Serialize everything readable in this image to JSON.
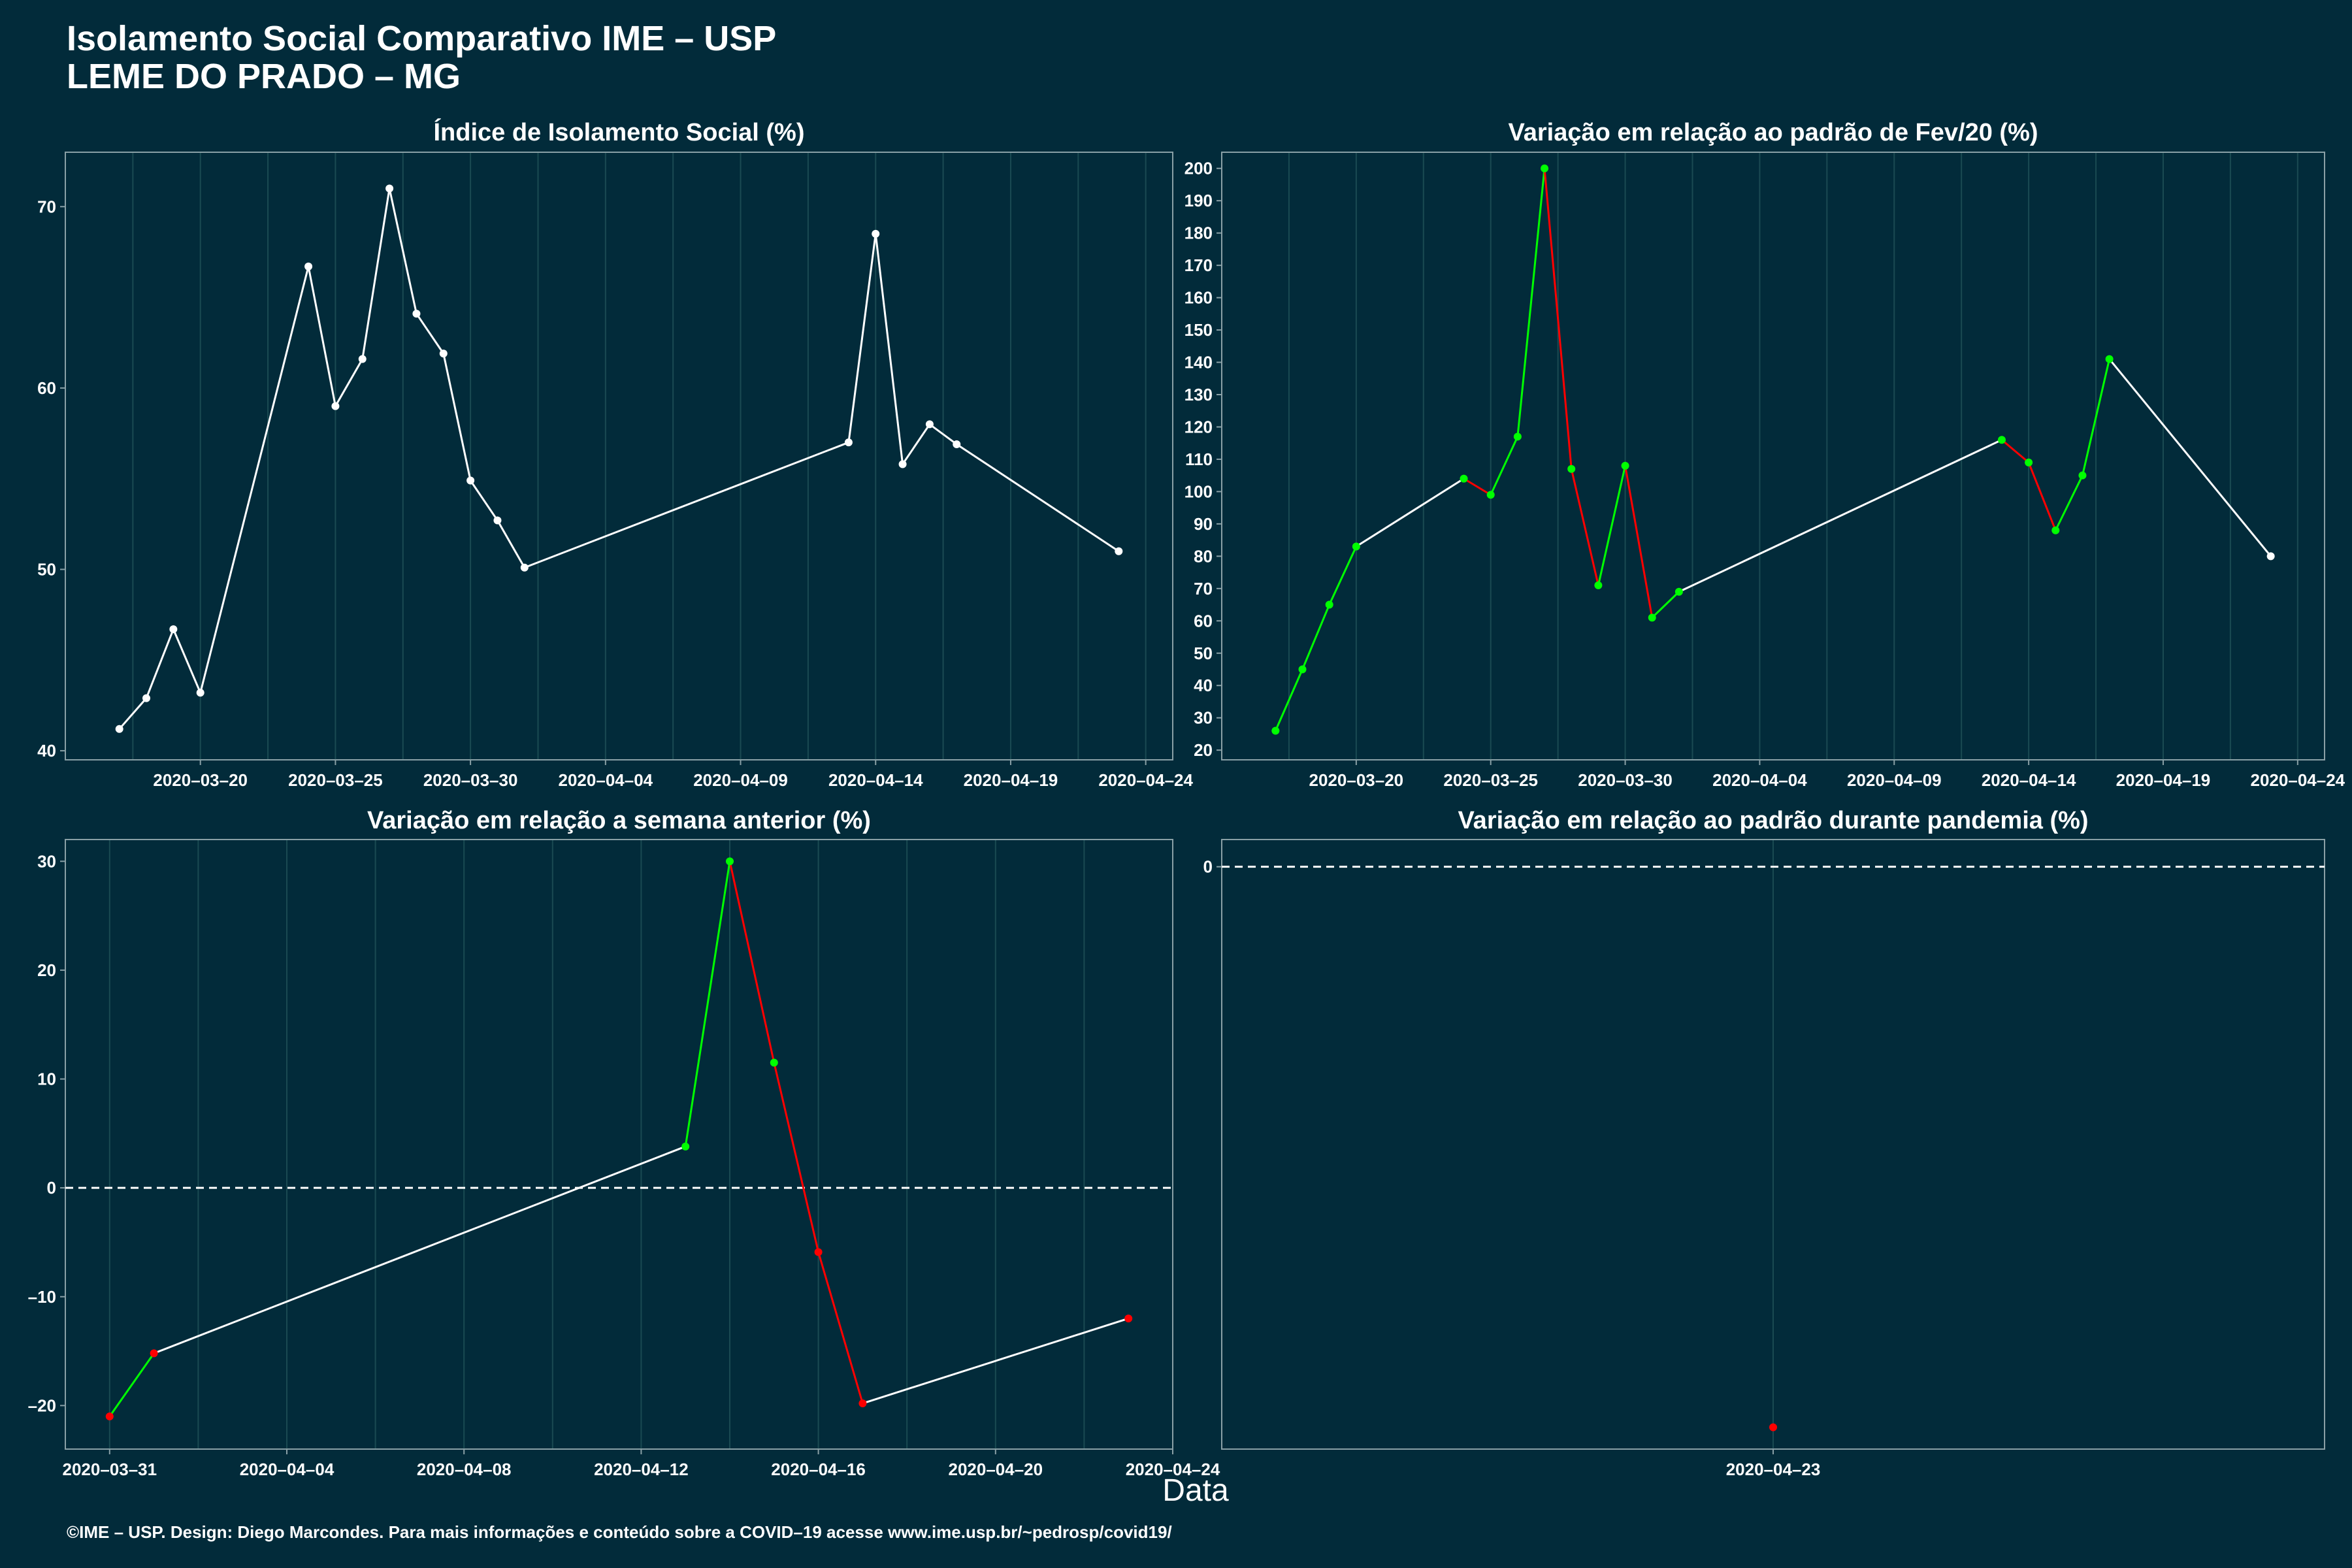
{
  "title": {
    "line1": "Isolamento Social Comparativo IME – USP",
    "line2": "LEME DO PRADO – MG"
  },
  "x_axis_title": "Data",
  "footer": "©IME – USP. Design: Diego Marcondes. Para mais informações e conteúdo sobre a COVID–19 acesse www.ime.usp.br/~pedrosp/covid19/",
  "colors": {
    "background": "#022b3a",
    "line_default": "#ffffff",
    "increase": "#00ff00",
    "decrease": "#ff0000",
    "grid": "#1a4a52",
    "frame": "#8aa0a6"
  },
  "chart_data": [
    {
      "type": "line",
      "title": "Índice de Isolamento Social (%)",
      "x_type": "date",
      "xlim": [
        "2020-03-15",
        "2020-04-25"
      ],
      "ylim": [
        39.5,
        73
      ],
      "x_ticks": [
        "2020-03-20",
        "2020-03-25",
        "2020-03-30",
        "2020-04-04",
        "2020-04-09",
        "2020-04-14",
        "2020-04-19",
        "2020-04-24"
      ],
      "y_ticks": [
        40,
        50,
        60,
        70
      ],
      "colored": false,
      "points": [
        {
          "x": "2020-03-17",
          "y": 41.2
        },
        {
          "x": "2020-03-18",
          "y": 42.9
        },
        {
          "x": "2020-03-19",
          "y": 46.7
        },
        {
          "x": "2020-03-20",
          "y": 43.2
        },
        {
          "x": "2020-03-24",
          "y": 66.7
        },
        {
          "x": "2020-03-25",
          "y": 59.0
        },
        {
          "x": "2020-03-26",
          "y": 61.6
        },
        {
          "x": "2020-03-27",
          "y": 71.0
        },
        {
          "x": "2020-03-28",
          "y": 64.1
        },
        {
          "x": "2020-03-29",
          "y": 61.9
        },
        {
          "x": "2020-03-30",
          "y": 54.9
        },
        {
          "x": "2020-03-31",
          "y": 52.7
        },
        {
          "x": "2020-04-01",
          "y": 50.1
        },
        {
          "x": "2020-04-13",
          "y": 57.0
        },
        {
          "x": "2020-04-14",
          "y": 68.5
        },
        {
          "x": "2020-04-15",
          "y": 55.8
        },
        {
          "x": "2020-04-16",
          "y": 58.0
        },
        {
          "x": "2020-04-17",
          "y": 56.9
        },
        {
          "x": "2020-04-23",
          "y": 51.0
        }
      ]
    },
    {
      "type": "line",
      "title": "Variação em relação ao padrão de Fev/20 (%)",
      "x_type": "date",
      "xlim": [
        "2020-03-15",
        "2020-04-25"
      ],
      "ylim": [
        17,
        205
      ],
      "x_ticks": [
        "2020-03-20",
        "2020-03-25",
        "2020-03-30",
        "2020-04-04",
        "2020-04-09",
        "2020-04-14",
        "2020-04-19",
        "2020-04-24"
      ],
      "y_ticks": [
        20,
        30,
        40,
        50,
        60,
        70,
        80,
        90,
        100,
        110,
        120,
        130,
        140,
        150,
        160,
        170,
        180,
        190,
        200
      ],
      "colored": true,
      "points": [
        {
          "x": "2020-03-17",
          "y": 26
        },
        {
          "x": "2020-03-18",
          "y": 45
        },
        {
          "x": "2020-03-19",
          "y": 65
        },
        {
          "x": "2020-03-20",
          "y": 83
        },
        {
          "x": "2020-03-24",
          "y": 104
        },
        {
          "x": "2020-03-25",
          "y": 99
        },
        {
          "x": "2020-03-26",
          "y": 117
        },
        {
          "x": "2020-03-27",
          "y": 200
        },
        {
          "x": "2020-03-28",
          "y": 107
        },
        {
          "x": "2020-03-29",
          "y": 71
        },
        {
          "x": "2020-03-30",
          "y": 108
        },
        {
          "x": "2020-03-31",
          "y": 61
        },
        {
          "x": "2020-04-01",
          "y": 69
        },
        {
          "x": "2020-04-13",
          "y": 116
        },
        {
          "x": "2020-04-14",
          "y": 109
        },
        {
          "x": "2020-04-15",
          "y": 88
        },
        {
          "x": "2020-04-16",
          "y": 105
        },
        {
          "x": "2020-04-17",
          "y": 141
        },
        {
          "x": "2020-04-23",
          "y": 80
        }
      ]
    },
    {
      "type": "line",
      "title": "Variação em relação a semana anterior (%)",
      "x_type": "date",
      "xlim": [
        "2020-03-30",
        "2020-04-24"
      ],
      "ylim": [
        -24,
        32
      ],
      "x_ticks": [
        "2020-03-31",
        "2020-04-04",
        "2020-04-08",
        "2020-04-12",
        "2020-04-16",
        "2020-04-20",
        "2020-04-24"
      ],
      "y_ticks": [
        -20,
        -10,
        0,
        10,
        20,
        30
      ],
      "zero_line": true,
      "colored": true,
      "points": [
        {
          "x": "2020-03-31",
          "y": -21.0
        },
        {
          "x": "2020-04-01",
          "y": -15.2
        },
        {
          "x": "2020-04-13",
          "y": 3.8
        },
        {
          "x": "2020-04-14",
          "y": 30.0
        },
        {
          "x": "2020-04-15",
          "y": 11.5
        },
        {
          "x": "2020-04-16",
          "y": -5.9
        },
        {
          "x": "2020-04-17",
          "y": -19.8
        },
        {
          "x": "2020-04-23",
          "y": -12.0
        }
      ]
    },
    {
      "type": "scatter",
      "title": "Variação em relação ao padrão durante pandemia (%)",
      "x_type": "date",
      "xlim": [
        "2020-04-22",
        "2020-04-24"
      ],
      "ylim": [
        -53.5,
        2.5
      ],
      "x_ticks": [
        "2020-04-23"
      ],
      "y_ticks": [
        0
      ],
      "zero_line": true,
      "colored": true,
      "points": [
        {
          "x": "2020-04-23",
          "y": -51.5
        }
      ]
    }
  ]
}
